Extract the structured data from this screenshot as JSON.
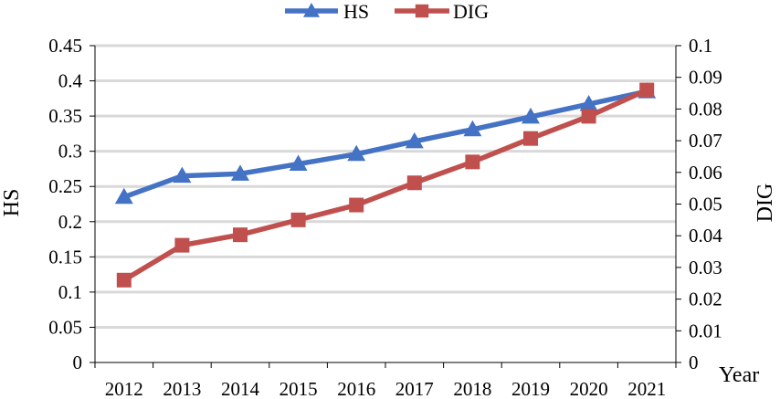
{
  "chart_data": {
    "type": "line",
    "title": "",
    "categories": [
      "2012",
      "2013",
      "2014",
      "2015",
      "2016",
      "2017",
      "2018",
      "2019",
      "2020",
      "2021"
    ],
    "xlabel": "Year",
    "ylabel": "HS",
    "y2label": "DIG",
    "ylim": [
      0,
      0.45
    ],
    "y2lim": [
      0,
      0.1
    ],
    "yticks": [
      "0",
      "0.05",
      "0.1",
      "0.15",
      "0.2",
      "0.25",
      "0.3",
      "0.35",
      "0.4",
      "0.45"
    ],
    "y2ticks": [
      "0",
      "0.01",
      "0.02",
      "0.03",
      "0.04",
      "0.05",
      "0.06",
      "0.07",
      "0.08",
      "0.09",
      "0.1"
    ],
    "grid": true,
    "legend_position": "top-center",
    "series": [
      {
        "name": "HS",
        "axis": "left",
        "marker": "triangle",
        "color": "#4472C4",
        "values": [
          0.235,
          0.265,
          0.268,
          0.282,
          0.296,
          0.314,
          0.331,
          0.349,
          0.367,
          0.385
        ]
      },
      {
        "name": "DIG",
        "axis": "right",
        "marker": "square",
        "color": "#C0504D",
        "values": [
          0.026,
          0.037,
          0.0403,
          0.045,
          0.0497,
          0.0567,
          0.0633,
          0.0707,
          0.0777,
          0.086
        ]
      }
    ]
  }
}
